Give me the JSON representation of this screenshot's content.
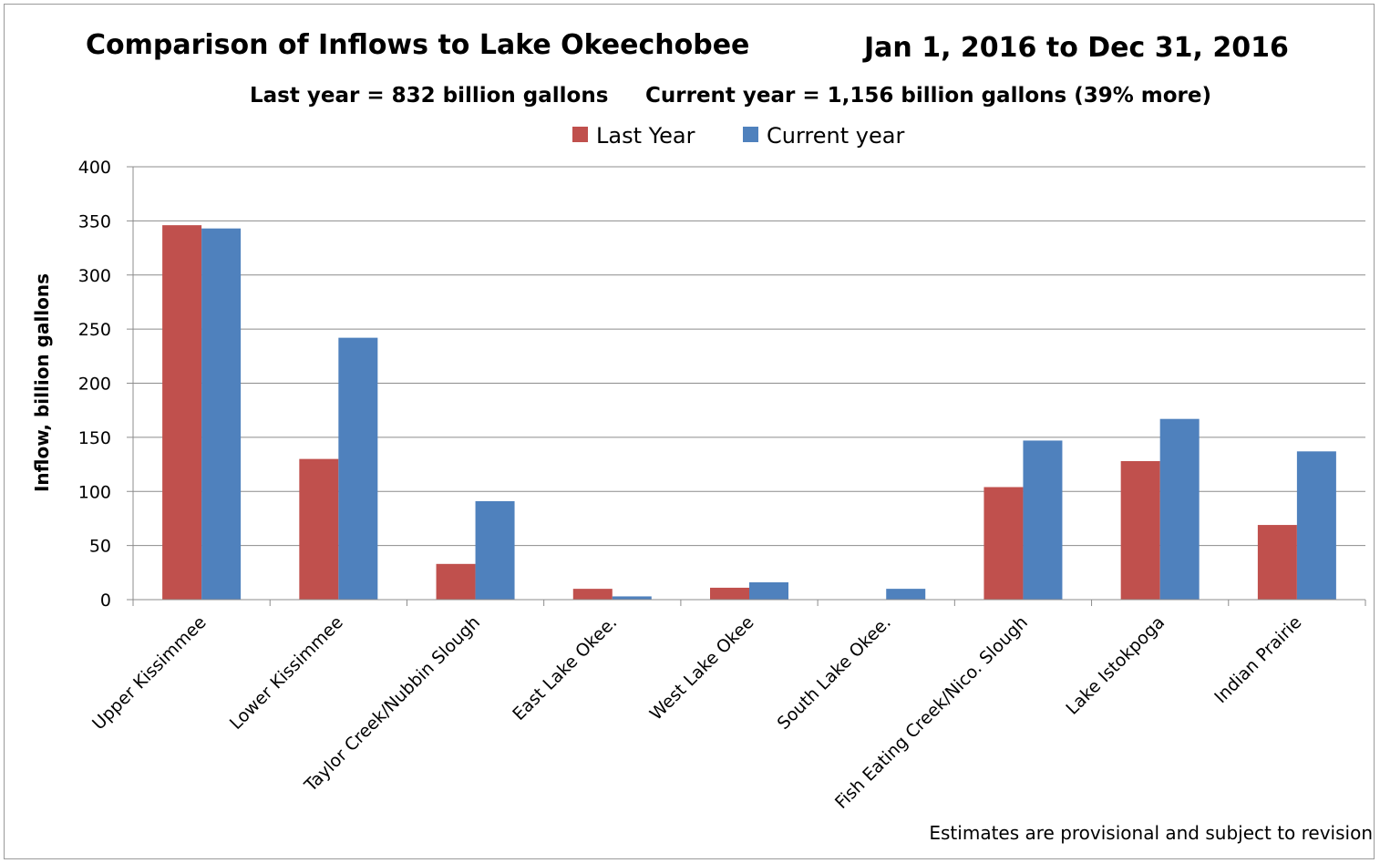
{
  "chart_data": {
    "type": "bar",
    "title": "Comparison of Inflows to Lake Okeechobee",
    "date_range": "Jan 1, 2016 to Dec 31, 2016",
    "subtitle_left": "Last year = 832 billion gallons",
    "subtitle_right": "Current year = 1,156 billion gallons (39% more)",
    "ylabel": "Inflow, billion gallons",
    "xlabel": "",
    "ylim": [
      0,
      400
    ],
    "yticks": [
      0,
      50,
      100,
      150,
      200,
      250,
      300,
      350,
      400
    ],
    "grid": true,
    "legend_position": "top-center",
    "categories": [
      "Upper Kissimmee",
      "Lower Kissimmee",
      "Taylor Creek/Nubbin Slough",
      "East Lake Okee.",
      "West Lake Okee",
      "South Lake Okee.",
      "Fish Eating Creek/Nico. Slough",
      "Lake Istokpoga",
      "Indian Prairie"
    ],
    "series": [
      {
        "name": "Last Year",
        "color": "#C0504D",
        "values": [
          346,
          130,
          33,
          10,
          11,
          0,
          104,
          128,
          69
        ]
      },
      {
        "name": "Current year",
        "color": "#4F81BD",
        "values": [
          343,
          242,
          91,
          3,
          16,
          10,
          147,
          167,
          137
        ]
      }
    ],
    "note": "Estimates are provisional and subject to revision"
  }
}
